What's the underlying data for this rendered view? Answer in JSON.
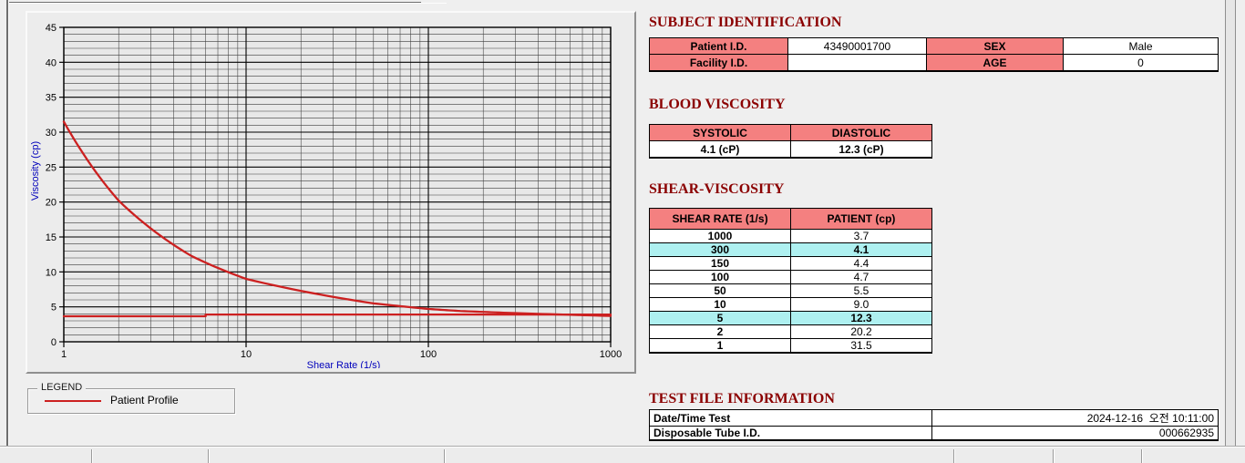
{
  "colors": {
    "accent_title": "#8b0000",
    "table_header_pink": "#f48080",
    "highlight_cyan": "#aef0f0",
    "curve_red": "#cc2020",
    "axis_label_blue": "#0000bb"
  },
  "legend": {
    "box_label": "LEGEND",
    "series_label": "Patient Profile"
  },
  "subject_identification": {
    "title": "SUBJECT IDENTIFICATION",
    "rows": [
      {
        "name": "patient-id",
        "label_a": "Patient I.D.",
        "value_a": "43490001700",
        "name_b": "sex",
        "label_b": "SEX",
        "value_b": "Male"
      },
      {
        "name": "facility-id",
        "label_a": "Facility I.D.",
        "value_a": "",
        "name_b": "age",
        "label_b": "AGE",
        "value_b": "0"
      }
    ]
  },
  "blood_viscosity": {
    "title": "BLOOD VISCOSITY",
    "headers": [
      "SYSTOLIC",
      "DIASTOLIC"
    ],
    "values": [
      "4.1 (cP)",
      "12.3 (cP)"
    ]
  },
  "shear_viscosity": {
    "title": "SHEAR-VISCOSITY",
    "headers": [
      "SHEAR RATE (1/s)",
      "PATIENT (cp)"
    ],
    "rows": [
      {
        "rate": "1000",
        "patient": "3.7",
        "highlight": false
      },
      {
        "rate": "300",
        "patient": "4.1",
        "highlight": true
      },
      {
        "rate": "150",
        "patient": "4.4",
        "highlight": false
      },
      {
        "rate": "100",
        "patient": "4.7",
        "highlight": false
      },
      {
        "rate": "50",
        "patient": "5.5",
        "highlight": false
      },
      {
        "rate": "10",
        "patient": "9.0",
        "highlight": false
      },
      {
        "rate": "5",
        "patient": "12.3",
        "highlight": true
      },
      {
        "rate": "2",
        "patient": "20.2",
        "highlight": false
      },
      {
        "rate": "1",
        "patient": "31.5",
        "highlight": false
      }
    ]
  },
  "test_file_information": {
    "title": "TEST FILE INFORMATION",
    "rows": [
      {
        "name": "date-time-test",
        "label": "Date/Time Test",
        "value": "2024-12-16  오전 10:11:00"
      },
      {
        "name": "disposable-tube-id",
        "label": "Disposable Tube I.D.",
        "value": "000662935"
      }
    ]
  },
  "chart_data": {
    "type": "line",
    "x_scale": "log",
    "xlabel": "Shear Rate (1/s)",
    "ylabel": "Viscosity (cp)",
    "xlim": [
      1,
      1000
    ],
    "ylim": [
      0,
      45
    ],
    "x_major_ticks": [
      1,
      10,
      100,
      1000
    ],
    "y_major_ticks": [
      0,
      5,
      10,
      15,
      20,
      25,
      30,
      35,
      40,
      45
    ],
    "grid": "major at decades / every 5 cp, minor at log subdivisions / every 1 cp",
    "legend_position": "group box below chart",
    "series": [
      {
        "name": "Patient Profile",
        "color": "#cc2020",
        "x": [
          1,
          2,
          5,
          10,
          50,
          100,
          150,
          300,
          1000
        ],
        "values": [
          31.5,
          20.2,
          12.3,
          9.0,
          5.5,
          4.7,
          4.4,
          4.1,
          3.7
        ],
        "smooth": true
      },
      {
        "name": "baseline-reference",
        "color": "#cc2020",
        "x": [
          1,
          6,
          6,
          1000
        ],
        "values": [
          3.65,
          3.65,
          3.9,
          3.9
        ],
        "smooth": false
      }
    ]
  }
}
